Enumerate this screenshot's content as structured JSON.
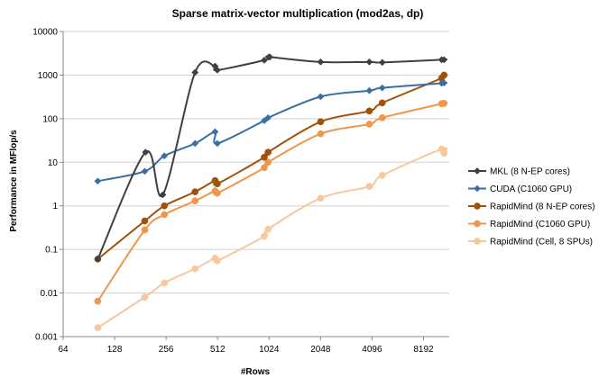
{
  "chart_data": {
    "type": "line",
    "title": "Sparse matrix-vector multiplication (mod2as, dp)",
    "xlabel": "#Rows",
    "ylabel": "Performance in MFlop/s",
    "x_scale": "log2",
    "y_scale": "log10",
    "xlim": [
      64,
      11585
    ],
    "ylim": [
      0.001,
      10000
    ],
    "x_ticks": [
      64,
      128,
      256,
      512,
      1024,
      2048,
      4096,
      8192
    ],
    "x_tick_labels": [
      "64",
      "128",
      "256",
      "512",
      "1024",
      "2048",
      "4096",
      "8192"
    ],
    "y_ticks": [
      0.001,
      0.01,
      0.1,
      1,
      10,
      100,
      1000,
      10000
    ],
    "y_tick_labels": [
      "0.001",
      "0.01",
      "0.1",
      "1",
      "10",
      "100",
      "1000",
      "10000"
    ],
    "grid": "horizontal",
    "legend_position": "right",
    "series": [
      {
        "name": "MKL (8 N-EP cores)",
        "color": "#404040",
        "marker": "diamond",
        "points": [
          [
            102,
            0.06
          ],
          [
            194,
            17
          ],
          [
            245,
            1.8
          ],
          [
            378,
            1150
          ],
          [
            495,
            1600
          ],
          [
            510,
            1300
          ],
          [
            960,
            2200
          ],
          [
            1020,
            2600
          ],
          [
            1035,
            2600
          ],
          [
            2050,
            2000
          ],
          [
            3950,
            2000
          ],
          [
            4700,
            1950
          ],
          [
            10450,
            2250
          ],
          [
            10800,
            2250
          ]
        ]
      },
      {
        "name": "CUDA (C1060 GPU)",
        "color": "#3a6ea5",
        "marker": "diamond",
        "points": [
          [
            102,
            3.7
          ],
          [
            192,
            6.2
          ],
          [
            250,
            14
          ],
          [
            378,
            27
          ],
          [
            495,
            50
          ],
          [
            510,
            27
          ],
          [
            960,
            90
          ],
          [
            1010,
            105
          ],
          [
            2050,
            320
          ],
          [
            3950,
            440
          ],
          [
            4700,
            510
          ],
          [
            10450,
            650
          ],
          [
            10800,
            660
          ]
        ]
      },
      {
        "name": "RapidMind (8 N-EP cores)",
        "color": "#a0520a",
        "marker": "circle",
        "points": [
          [
            102,
            0.06
          ],
          [
            192,
            0.45
          ],
          [
            250,
            1.0
          ],
          [
            378,
            2.1
          ],
          [
            495,
            3.8
          ],
          [
            510,
            3.2
          ],
          [
            960,
            13
          ],
          [
            1010,
            17
          ],
          [
            2050,
            85
          ],
          [
            3950,
            150
          ],
          [
            4700,
            230
          ],
          [
            10450,
            850
          ],
          [
            10800,
            1000
          ]
        ]
      },
      {
        "name": "RapidMind (C1060 GPU)",
        "color": "#f0964a",
        "marker": "circle",
        "points": [
          [
            102,
            0.0065
          ],
          [
            192,
            0.28
          ],
          [
            250,
            0.63
          ],
          [
            378,
            1.3
          ],
          [
            495,
            2.2
          ],
          [
            510,
            1.95
          ],
          [
            960,
            7.5
          ],
          [
            1010,
            10
          ],
          [
            2050,
            45
          ],
          [
            3950,
            75
          ],
          [
            4700,
            105
          ],
          [
            10450,
            220
          ],
          [
            10800,
            225
          ]
        ]
      },
      {
        "name": "RapidMind (Cell, 8 SPUs)",
        "color": "#f8c79c",
        "marker": "circle",
        "points": [
          [
            102,
            0.0016
          ],
          [
            192,
            0.008
          ],
          [
            250,
            0.017
          ],
          [
            378,
            0.036
          ],
          [
            495,
            0.063
          ],
          [
            510,
            0.055
          ],
          [
            960,
            0.2
          ],
          [
            1010,
            0.29
          ],
          [
            2050,
            1.5
          ],
          [
            3950,
            2.8
          ],
          [
            4700,
            5.0
          ],
          [
            10450,
            20
          ],
          [
            10800,
            16
          ]
        ]
      }
    ]
  }
}
